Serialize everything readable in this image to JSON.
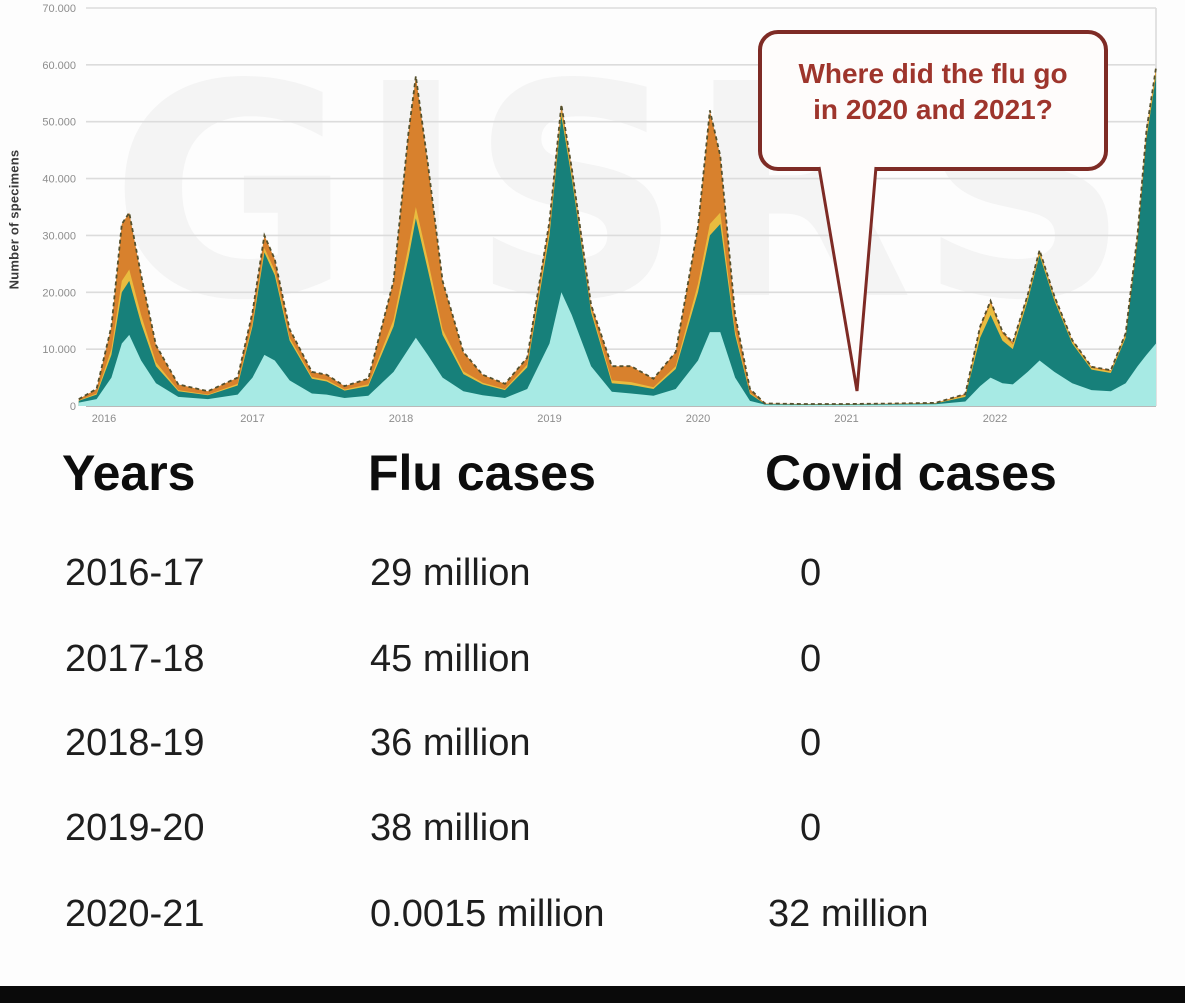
{
  "page": {
    "background": "#fdfdfd",
    "bottom_bar_color": "#0a0a0a"
  },
  "chart_data": {
    "type": "area",
    "stacked": true,
    "title": "",
    "ylabel": "Number of specimens",
    "xlabel": "",
    "watermark": "GISRS",
    "grid": "horizontal",
    "legend": "none",
    "ylim": [
      0,
      70000
    ],
    "yticks": {
      "values": [
        0,
        10000,
        20000,
        30000,
        40000,
        50000,
        60000,
        70000
      ],
      "labels": [
        "0",
        "10.000",
        "20.000",
        "30.000",
        "40.000",
        "50.000",
        "60.000",
        "70.000"
      ]
    },
    "xticks": {
      "values": [
        2016,
        2017,
        2018,
        2019,
        2020,
        2021,
        2022
      ],
      "labels": [
        "2016",
        "2017",
        "2018",
        "2019",
        "2020",
        "2021",
        "2022"
      ]
    },
    "x": [
      2015.83,
      2015.95,
      2016.05,
      2016.12,
      2016.17,
      2016.25,
      2016.35,
      2016.5,
      2016.7,
      2016.9,
      2017.0,
      2017.08,
      2017.15,
      2017.25,
      2017.4,
      2017.5,
      2017.62,
      2017.78,
      2017.95,
      2018.05,
      2018.1,
      2018.18,
      2018.28,
      2018.42,
      2018.55,
      2018.7,
      2018.85,
      2019.0,
      2019.08,
      2019.15,
      2019.28,
      2019.42,
      2019.55,
      2019.7,
      2019.85,
      2020.0,
      2020.08,
      2020.15,
      2020.25,
      2020.35,
      2020.45,
      2020.7,
      2021.0,
      2021.3,
      2021.6,
      2021.8,
      2021.9,
      2021.97,
      2022.05,
      2022.12,
      2022.22,
      2022.3,
      2022.4,
      2022.52,
      2022.65,
      2022.78,
      2022.88,
      2022.96,
      2023.02,
      2023.1
    ],
    "series": [
      {
        "name": "light-cyan-layer",
        "color": "#A7EAE4",
        "values": [
          600,
          1200,
          5000,
          11000,
          12500,
          8000,
          4000,
          1600,
          1200,
          2000,
          5000,
          9000,
          8000,
          4500,
          2200,
          2000,
          1400,
          1800,
          6000,
          10000,
          12000,
          9000,
          5000,
          2600,
          1900,
          1400,
          3000,
          11000,
          20000,
          16000,
          7000,
          2500,
          2200,
          1800,
          3000,
          8000,
          13000,
          13000,
          5000,
          900,
          250,
          200,
          200,
          250,
          300,
          800,
          3500,
          5000,
          4000,
          3800,
          6000,
          8000,
          6000,
          4000,
          2800,
          2600,
          4000,
          7000,
          9000,
          11000
        ]
      },
      {
        "name": "dark-teal-layer",
        "color": "#17807A",
        "values": [
          300,
          800,
          4000,
          9000,
          9500,
          6500,
          3000,
          1000,
          700,
          1600,
          9000,
          18000,
          15000,
          7000,
          2600,
          2300,
          1300,
          1700,
          8000,
          16000,
          21000,
          15000,
          7500,
          3000,
          1900,
          1400,
          3800,
          19000,
          31000,
          24000,
          9500,
          1500,
          1500,
          1200,
          3500,
          12000,
          17000,
          19000,
          7500,
          1200,
          100,
          80,
          80,
          100,
          150,
          800,
          8500,
          11000,
          7500,
          6200,
          12500,
          18500,
          12500,
          7000,
          3600,
          3200,
          8000,
          22000,
          38000,
          47000
        ]
      },
      {
        "name": "yellow-layer",
        "color": "#E9BC3F",
        "values": [
          100,
          200,
          1000,
          2000,
          2000,
          1500,
          700,
          200,
          100,
          300,
          600,
          800,
          800,
          500,
          300,
          300,
          200,
          300,
          1200,
          2000,
          2000,
          1800,
          1000,
          500,
          300,
          200,
          500,
          1000,
          1000,
          900,
          600,
          500,
          500,
          300,
          500,
          1500,
          2000,
          2000,
          800,
          200,
          30,
          20,
          20,
          20,
          30,
          300,
          1500,
          2000,
          1200,
          800,
          700,
          600,
          500,
          400,
          300,
          300,
          500,
          800,
          1000,
          1000
        ]
      },
      {
        "name": "orange-layer",
        "color": "#D8812D",
        "values": [
          200,
          800,
          4000,
          10000,
          10000,
          7000,
          3000,
          1000,
          600,
          1100,
          1900,
          2200,
          2000,
          1500,
          900,
          900,
          600,
          1000,
          6800,
          20000,
          23000,
          17000,
          8500,
          3400,
          1400,
          900,
          1200,
          1500,
          1000,
          900,
          700,
          2500,
          2800,
          1500,
          2500,
          10000,
          20000,
          10000,
          2700,
          700,
          70,
          50,
          50,
          60,
          70,
          200,
          500,
          500,
          400,
          400,
          300,
          300,
          300,
          200,
          200,
          200,
          300,
          400,
          500,
          500
        ]
      }
    ],
    "outline": {
      "color": "#55502c",
      "style": "dashed"
    },
    "annotation": {
      "lines": [
        "Where did the flu go",
        "in 2020 and 2021?"
      ],
      "text_color": "#9E352C",
      "border_color": "#7E2B25",
      "points_to_year": "2021"
    }
  },
  "table": {
    "headers": [
      "Years",
      "Flu cases",
      "Covid cases"
    ],
    "rows": [
      [
        "2016-17",
        "29 million",
        "0"
      ],
      [
        "2017-18",
        "45 million",
        "0"
      ],
      [
        "2018-19",
        "36 million",
        "0"
      ],
      [
        "2019-20",
        "38 million",
        "0"
      ],
      [
        "2020-21",
        "0.0015 million",
        "32 million"
      ]
    ]
  }
}
